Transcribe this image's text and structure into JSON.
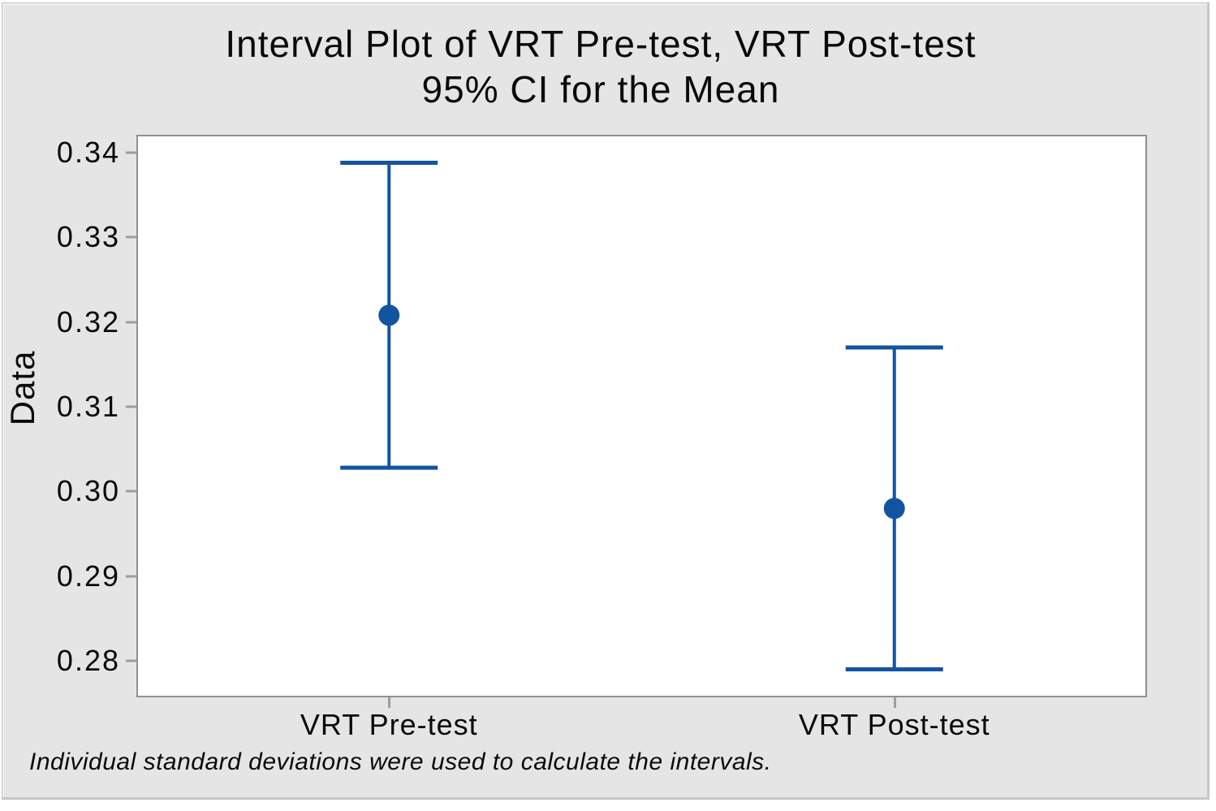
{
  "figure": {
    "background_color": "#e6e5e5",
    "plot_background": "#ffffff",
    "plot_border_color": "#909090",
    "tick_color": "#9d9d9d",
    "text_color": "#0a0a0a"
  },
  "chart_data": {
    "type": "interval",
    "title": "Interval Plot of VRT Pre-test, VRT Post-test",
    "subtitle": "95% CI for the Mean",
    "ylabel": "Data",
    "xlabel": "",
    "footnote": "Individual standard deviations were used to calculate the intervals.",
    "categories": [
      "VRT Pre-test",
      "VRT Post-test"
    ],
    "series": [
      {
        "name": "95% CI for the Mean",
        "points": [
          {
            "category": "VRT Pre-test",
            "mean": 0.3208,
            "ci_lower": 0.3028,
            "ci_upper": 0.3388
          },
          {
            "category": "VRT Post-test",
            "mean": 0.298,
            "ci_lower": 0.279,
            "ci_upper": 0.317
          }
        ]
      }
    ],
    "y_tick_labels": [
      "0.34",
      "0.33",
      "0.32",
      "0.31",
      "0.30",
      "0.29",
      "0.28"
    ],
    "ylim": [
      0.2757,
      0.3421
    ],
    "grid": false,
    "legend": false,
    "interval_color": "#1354a1",
    "marker_color": "#1354a1"
  }
}
